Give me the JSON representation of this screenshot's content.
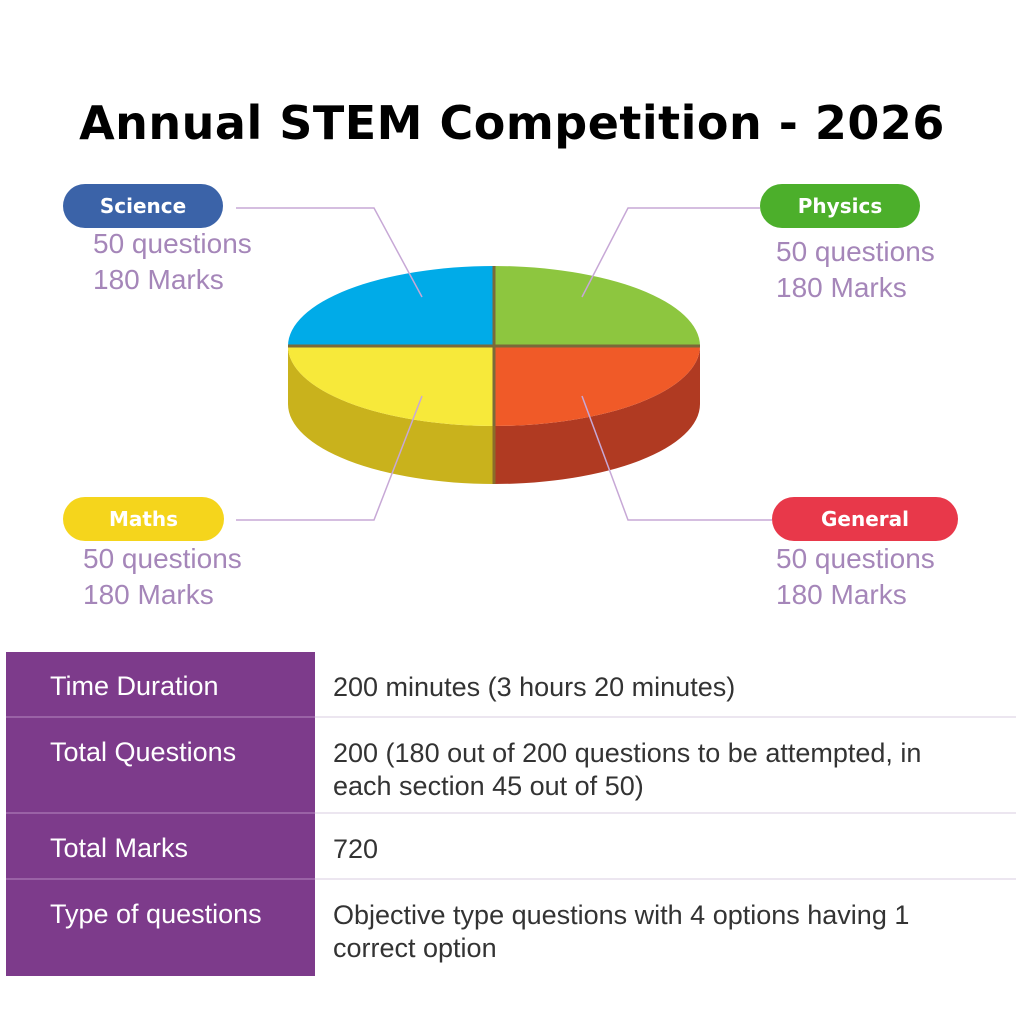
{
  "title": "Annual STEM Competition - 2026",
  "chart_data": {
    "type": "pie",
    "title": "Annual STEM Competition - 2026",
    "slices": [
      {
        "label": "Science",
        "questions_text": "50 questions",
        "marks_text": "180 Marks",
        "questions": 50,
        "marks": 180,
        "color": "#00abe8",
        "side_color": "#0088bb",
        "pill_color": "#3b63a8"
      },
      {
        "label": "Physics",
        "questions_text": "50 questions",
        "marks_text": "180 Marks",
        "questions": 50,
        "marks": 180,
        "color": "#8dc63f",
        "side_color": "#6e9e2e",
        "pill_color": "#4caf2b"
      },
      {
        "label": "General",
        "questions_text": "50 questions",
        "marks_text": "180 Marks",
        "questions": 50,
        "marks": 180,
        "color": "#f05a28",
        "side_color": "#b03a22",
        "pill_color": "#e8384a"
      },
      {
        "label": "Maths",
        "questions_text": "50 questions",
        "marks_text": "180 Marks",
        "questions": 50,
        "marks": 180,
        "color": "#f7e93a",
        "side_color": "#c9b21c",
        "pill_color": "#f5d51c"
      }
    ]
  },
  "table": {
    "rows": [
      {
        "label": "Time Duration",
        "value": "200 minutes (3 hours 20 minutes)"
      },
      {
        "label": "Total Questions",
        "value": "200 (180 out of 200 questions to be attempted, in each section 45 out of 50)"
      },
      {
        "label": "Total Marks",
        "value": "720"
      },
      {
        "label": "Type of questions",
        "value": "Objective type questions with 4 options having 1 correct option"
      }
    ]
  }
}
